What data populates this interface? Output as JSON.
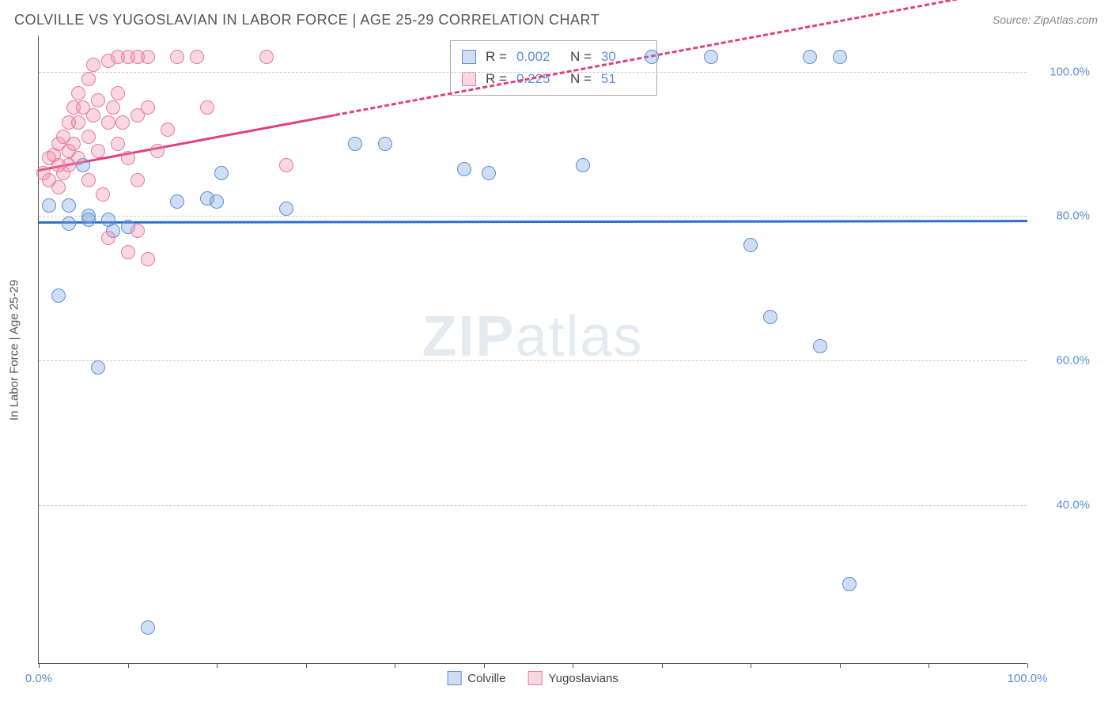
{
  "header": {
    "title": "COLVILLE VS YUGOSLAVIAN IN LABOR FORCE | AGE 25-29 CORRELATION CHART",
    "source": "Source: ZipAtlas.com"
  },
  "chart": {
    "type": "scatter",
    "ylabel": "In Labor Force | Age 25-29",
    "watermark_bold": "ZIP",
    "watermark_rest": "atlas",
    "xlim": [
      0,
      100
    ],
    "ylim": [
      18,
      105
    ],
    "xtick_positions": [
      0,
      9,
      18,
      27,
      36,
      45,
      54,
      63,
      72,
      81,
      90,
      100
    ],
    "xtick_labels": {
      "0": "0.0%",
      "100": "100.0%"
    },
    "ytick_positions": [
      40,
      60,
      80,
      100
    ],
    "ytick_labels": [
      "40.0%",
      "60.0%",
      "80.0%",
      "100.0%"
    ],
    "grid_color": "#cccccc",
    "background_color": "#ffffff",
    "axis_color": "#555555",
    "label_color": "#5b8fd6",
    "marker_radius": 9,
    "marker_border_width": 1.5,
    "series": [
      {
        "name": "Colville",
        "fill_color": "rgba(120,160,220,0.35)",
        "border_color": "#5b8fd6",
        "trend_color": "#2e6fc9",
        "trend_y1": 79.3,
        "trend_y2": 79.5,
        "trend_dashed": false,
        "points": [
          [
            1,
            81.5
          ],
          [
            3,
            81.5
          ],
          [
            4.5,
            87
          ],
          [
            5,
            80
          ],
          [
            3,
            79
          ],
          [
            5,
            79.5
          ],
          [
            7,
            79.5
          ],
          [
            7.5,
            78
          ],
          [
            9,
            78.5
          ],
          [
            2,
            69
          ],
          [
            6,
            59
          ],
          [
            11,
            23
          ],
          [
            14,
            82
          ],
          [
            17,
            82.5
          ],
          [
            18.5,
            86
          ],
          [
            18,
            82
          ],
          [
            25,
            81
          ],
          [
            32,
            90
          ],
          [
            35,
            90
          ],
          [
            43,
            86.5
          ],
          [
            45.5,
            86
          ],
          [
            62,
            102
          ],
          [
            55,
            87
          ],
          [
            68,
            102
          ],
          [
            78,
            102
          ],
          [
            72,
            76
          ],
          [
            74,
            66
          ],
          [
            79,
            62
          ],
          [
            81,
            102
          ],
          [
            82,
            29
          ]
        ]
      },
      {
        "name": "Yugoslavians",
        "fill_color": "rgba(240,140,170,0.35)",
        "border_color": "#e67aa0",
        "trend_color": "#e04080",
        "trend_y1": 86.5,
        "trend_y2": 112,
        "trend_dashed_from_x": 30,
        "points": [
          [
            0.5,
            86
          ],
          [
            1,
            88
          ],
          [
            1,
            85
          ],
          [
            1.5,
            88.5
          ],
          [
            2,
            90
          ],
          [
            2,
            87
          ],
          [
            2,
            84
          ],
          [
            2.5,
            91
          ],
          [
            2.5,
            86
          ],
          [
            3,
            93
          ],
          [
            3,
            89
          ],
          [
            3,
            87
          ],
          [
            3.5,
            95
          ],
          [
            3.5,
            90
          ],
          [
            4,
            97
          ],
          [
            4,
            93
          ],
          [
            4,
            88
          ],
          [
            4.5,
            95
          ],
          [
            5,
            99
          ],
          [
            5,
            91
          ],
          [
            5,
            85
          ],
          [
            5.5,
            101
          ],
          [
            5.5,
            94
          ],
          [
            6,
            96
          ],
          [
            6,
            89
          ],
          [
            6.5,
            83
          ],
          [
            7,
            101.5
          ],
          [
            7,
            93
          ],
          [
            7,
            77
          ],
          [
            7.5,
            95
          ],
          [
            8,
            102
          ],
          [
            8,
            97
          ],
          [
            8,
            90
          ],
          [
            8.5,
            93
          ],
          [
            9,
            102
          ],
          [
            9,
            88
          ],
          [
            9,
            75
          ],
          [
            10,
            102
          ],
          [
            10,
            94
          ],
          [
            10,
            85
          ],
          [
            10,
            78
          ],
          [
            11,
            102
          ],
          [
            11,
            95
          ],
          [
            11,
            74
          ],
          [
            12,
            89
          ],
          [
            13,
            92
          ],
          [
            14,
            102
          ],
          [
            16,
            102
          ],
          [
            17,
            95
          ],
          [
            23,
            102
          ],
          [
            25,
            87
          ]
        ]
      }
    ],
    "stats": [
      {
        "swatch_fill": "rgba(120,160,220,0.35)",
        "swatch_border": "#5b8fd6",
        "r": "0.002",
        "n": "30"
      },
      {
        "swatch_fill": "rgba(240,140,170,0.35)",
        "swatch_border": "#e67aa0",
        "r": "0.225",
        "n": "51"
      }
    ],
    "legend": [
      {
        "swatch_fill": "rgba(120,160,220,0.35)",
        "swatch_border": "#5b8fd6",
        "label": "Colville"
      },
      {
        "swatch_fill": "rgba(240,140,170,0.35)",
        "swatch_border": "#e67aa0",
        "label": "Yugoslavians"
      }
    ]
  }
}
